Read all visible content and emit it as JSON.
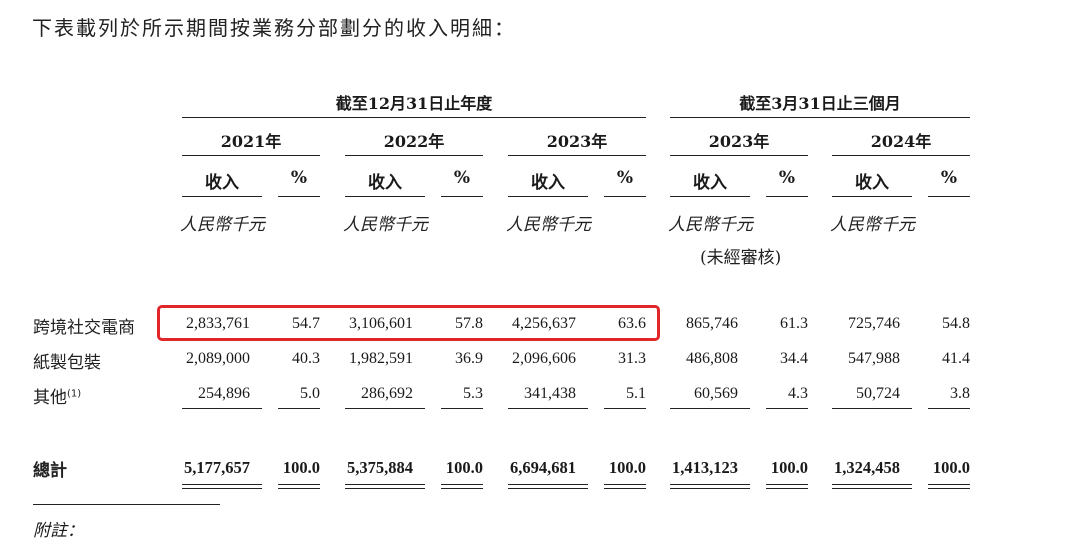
{
  "intro": "下表載列於所示期間按業務分部劃分的收入明細：",
  "groups": {
    "annual": "截至12月31日止年度",
    "quarter": "截至3月31日止三個月"
  },
  "years": [
    "2021年",
    "2022年",
    "2023年",
    "2023年",
    "2024年"
  ],
  "col_revenue": "收入",
  "col_pct": "%",
  "unit": "人民幣千元",
  "unaudited": "(未經審核)",
  "rows": [
    {
      "label": "跨境社交電商",
      "cells": [
        "2,833,761",
        "54.7",
        "3,106,601",
        "57.8",
        "4,256,637",
        "63.6",
        "865,746",
        "61.3",
        "725,746",
        "54.8"
      ]
    },
    {
      "label": "紙製包裝",
      "cells": [
        "2,089,000",
        "40.3",
        "1,982,591",
        "36.9",
        "2,096,606",
        "31.3",
        "486,808",
        "34.4",
        "547,988",
        "41.4"
      ]
    },
    {
      "label": "其他",
      "note": "(1)",
      "cells": [
        "254,896",
        "5.0",
        "286,692",
        "5.3",
        "341,438",
        "5.1",
        "60,569",
        "4.3",
        "50,724",
        "3.8"
      ]
    }
  ],
  "total": {
    "label": "總計",
    "cells": [
      "5,177,657",
      "100.0",
      "5,375,884",
      "100.0",
      "6,694,681",
      "100.0",
      "1,413,123",
      "100.0",
      "1,324,458",
      "100.0"
    ]
  },
  "footnote": "附註：",
  "highlight_color": "#e0262b"
}
